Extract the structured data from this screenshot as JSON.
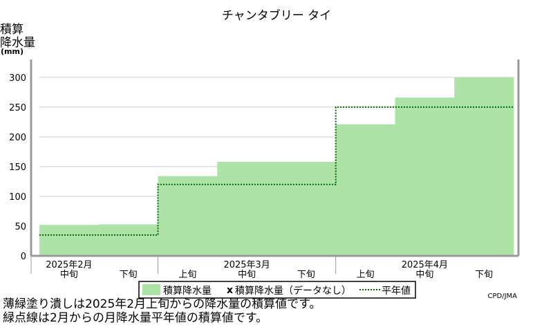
{
  "chart_data": {
    "type": "area",
    "title": "チャンタブリー タイ",
    "ylabel": [
      "積算",
      "降水量",
      "(mm)"
    ],
    "ylim": [
      0,
      330
    ],
    "yticks": [
      0,
      50,
      100,
      150,
      200,
      250,
      300
    ],
    "grid": true,
    "dekads": [
      {
        "label": "中旬",
        "month": "2025年2月"
      },
      {
        "label": "下旬",
        "month": ""
      },
      {
        "label": "上旬",
        "month": ""
      },
      {
        "label": "中旬",
        "month": "2025年3月"
      },
      {
        "label": "下旬",
        "month": ""
      },
      {
        "label": "上旬",
        "month": ""
      },
      {
        "label": "中旬",
        "month": "2025年4月"
      },
      {
        "label": "下旬",
        "month": ""
      }
    ],
    "series": [
      {
        "name": "積算降水量",
        "values": [
          52,
          53,
          134,
          158,
          158,
          221,
          266,
          300
        ]
      },
      {
        "name": "積算降水量（データなし）",
        "values": []
      },
      {
        "name": "平年値",
        "values": [
          35,
          35,
          120,
          120,
          120,
          250,
          250,
          250
        ]
      }
    ],
    "colors": {
      "fill": "#aee3a8",
      "normal": "#006600",
      "axis": "#999999",
      "grid": "#cccccc"
    },
    "legend": {
      "items": [
        "積算降水量",
        "積算降水量（データなし）",
        "平年値"
      ],
      "placement": "bottom"
    },
    "credit": "CPD/JMA"
  },
  "notes": [
    "薄緑塗り潰しは2025年2月上旬からの降水量の積算値です。",
    "緑点線は2月からの月降水量平年値の積算値です。"
  ]
}
